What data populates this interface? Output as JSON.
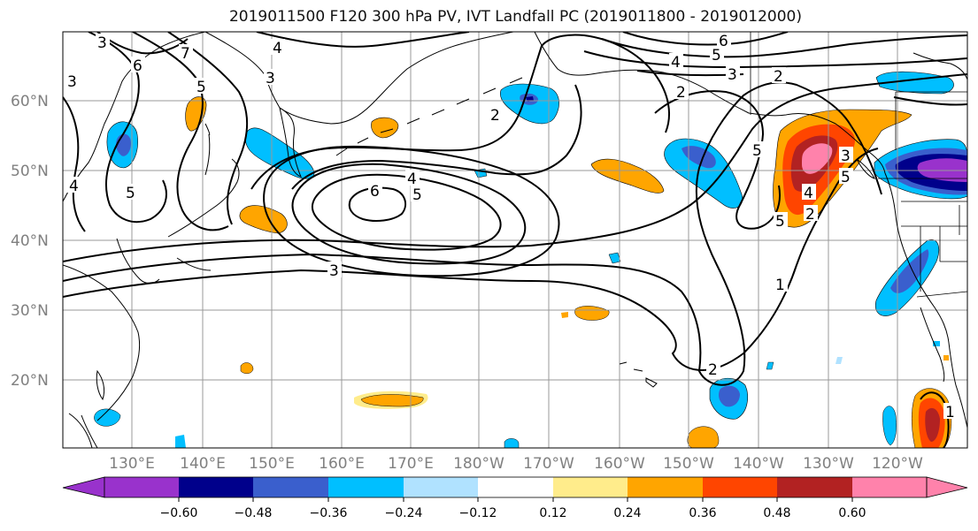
{
  "title": "2019011500 F120 300 hPa PV, IVT Landfall PC (2019011800 - 2019012000)",
  "lat_labels": [
    "60°N",
    "50°N",
    "40°N",
    "30°N",
    "20°N"
  ],
  "lon_labels": [
    "130°E",
    "140°E",
    "150°E",
    "160°E",
    "170°E",
    "180°W",
    "170°W",
    "160°W",
    "150°W",
    "140°W",
    "130°W",
    "120°W"
  ],
  "colorbar": {
    "tick_labels": [
      "−0.60",
      "−0.48",
      "−0.36",
      "−0.24",
      "−0.12",
      "0.12",
      "0.24",
      "0.36",
      "0.48",
      "0.60"
    ],
    "colors": [
      "#9932cc",
      "#00008b",
      "#3a5fcd",
      "#00bfff",
      "#b0e2ff",
      "#ffffff",
      "#ffec8b",
      "#ffa500",
      "#ff4500",
      "#b22222",
      "#ff82ab",
      "#ff82ab"
    ]
  },
  "pv_contour_labels": [
    "6",
    "7",
    "5",
    "4",
    "3",
    "2",
    "3",
    "5",
    "6",
    "4",
    "5",
    "4",
    "3",
    "6",
    "5",
    "4",
    "3",
    "2",
    "5",
    "2",
    "1",
    "2",
    "1",
    "3",
    "3",
    "5",
    "4",
    "2",
    "5"
  ],
  "colors": {
    "contour": "#000000",
    "grid": "#999999",
    "coast": "#000000",
    "axis_text": "#808080"
  }
}
